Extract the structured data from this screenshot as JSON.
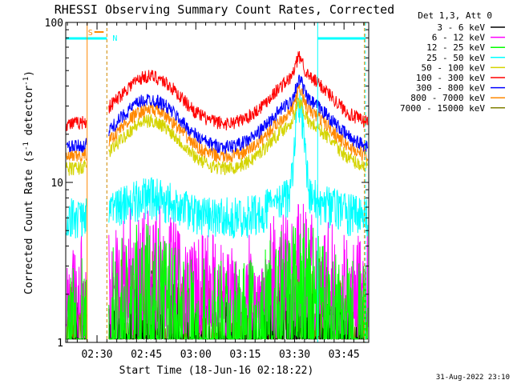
{
  "chart_data": {
    "type": "line",
    "title": "RHESSI Observing Summary Count Rates, Corrected",
    "xlabel": "Start Time (18-Jun-16 02:18:22)",
    "ylabel_main": "Corrected Count Rate (s",
    "ylabel_exp1": "-1",
    "ylabel_mid": " detector",
    "ylabel_exp2": "-1",
    "ylabel_end": ")",
    "y_scale": "log",
    "ylim": [
      1,
      100
    ],
    "xlim_minutes": [
      2.5,
      94.5
    ],
    "x_ticks": [
      {
        "label": "02:30",
        "minute": 12
      },
      {
        "label": "02:45",
        "minute": 27
      },
      {
        "label": "03:00",
        "minute": 42
      },
      {
        "label": "03:15",
        "minute": 57
      },
      {
        "label": "03:30",
        "minute": 72
      },
      {
        "label": "03:45",
        "minute": 87
      }
    ],
    "y_tick_labels": [
      {
        "label": "1",
        "value": 1
      },
      {
        "label": "10",
        "value": 10
      },
      {
        "label": "100",
        "value": 100
      }
    ],
    "legend_header": "Det 1,3, Att 0",
    "legend_placement": "top-right, outside plot",
    "series": [
      {
        "name": "3 - 6 keV",
        "color": "#000000",
        "level": 1.6
      },
      {
        "name": "6 - 12 keV",
        "color": "#ff00ff",
        "level": 4.2
      },
      {
        "name": "12 - 25 keV",
        "color": "#00ff00",
        "level": 3.0
      },
      {
        "name": "25 - 50 keV",
        "color": "#00ffff",
        "level": 7.5
      },
      {
        "name": "50 - 100 keV",
        "color": "#d4d400",
        "level": 22
      },
      {
        "name": "100 - 300 keV",
        "color": "#ff0000",
        "level": 42
      },
      {
        "name": "300 - 800 keV",
        "color": "#0000ff",
        "level": 30
      },
      {
        "name": "800 - 7000 keV",
        "color": "#ff8800",
        "level": 26
      },
      {
        "name": "7000 - 15000 keV",
        "color": "#808000",
        "level": 2.2
      }
    ],
    "annotations": {
      "saa_label": "S",
      "night_label": "N",
      "saa_interval_minutes": [
        9,
        15
      ],
      "night_intervals_minutes": [
        [
          2.5,
          15
        ],
        [
          79,
          93.5
        ]
      ]
    },
    "footer_date": "31-Aug-2022 23:10"
  }
}
